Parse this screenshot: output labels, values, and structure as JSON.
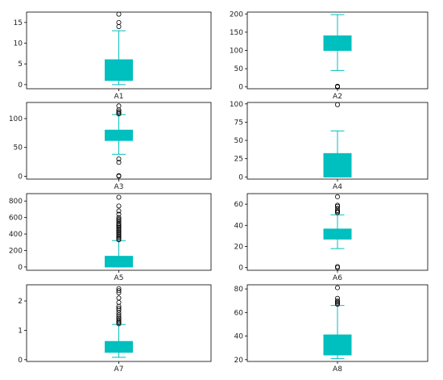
{
  "chart_data": [
    {
      "type": "box",
      "category": "A1",
      "ylim": [
        -1,
        17.5
      ],
      "yticks": [
        0,
        5,
        10,
        15
      ],
      "whisker_low": 0,
      "q1": 1,
      "median": 3,
      "q3": 6,
      "whisker_high": 13,
      "outliers": [
        14,
        15,
        17
      ],
      "color": "#00BFBF"
    },
    {
      "type": "box",
      "category": "A2",
      "ylim": [
        -5,
        205
      ],
      "yticks": [
        0,
        50,
        100,
        150,
        200
      ],
      "whisker_low": 45,
      "q1": 100,
      "median": 120,
      "q3": 140,
      "whisker_high": 198,
      "outliers": [
        0,
        1,
        2
      ],
      "color": "#00BFBF"
    },
    {
      "type": "box",
      "category": "A3",
      "ylim": [
        -5,
        128
      ],
      "yticks": [
        0,
        50,
        100
      ],
      "whisker_low": 38,
      "q1": 62,
      "median": 72,
      "q3": 80,
      "whisker_high": 107,
      "outliers": [
        0,
        1,
        24,
        30,
        108,
        110,
        112,
        115,
        122
      ],
      "color": "#00BFBF"
    },
    {
      "type": "box",
      "category": "A4",
      "ylim": [
        -3,
        102
      ],
      "yticks": [
        0,
        25,
        50,
        75,
        100
      ],
      "whisker_low": 0,
      "q1": 0,
      "median": 0,
      "q3": 32,
      "whisker_high": 63,
      "outliers": [
        99
      ],
      "color": "#00BFBF"
    },
    {
      "type": "box",
      "category": "A5",
      "ylim": [
        -40,
        890
      ],
      "yticks": [
        0,
        200,
        400,
        600,
        800
      ],
      "whisker_low": 0,
      "q1": 0,
      "median": 30,
      "q3": 130,
      "whisker_high": 320,
      "outliers": [
        330,
        345,
        360,
        375,
        390,
        405,
        420,
        435,
        450,
        465,
        480,
        495,
        510,
        525,
        545,
        565,
        580,
        600,
        640,
        680,
        740,
        846
      ],
      "color": "#00BFBF"
    },
    {
      "type": "box",
      "category": "A6",
      "ylim": [
        -2.5,
        70
      ],
      "yticks": [
        0,
        20,
        40,
        60
      ],
      "whisker_low": 18,
      "q1": 27,
      "median": 32,
      "q3": 36.5,
      "whisker_high": 50,
      "outliers": [
        0,
        1,
        52,
        53,
        54,
        56,
        58,
        59,
        67
      ],
      "color": "#00BFBF"
    },
    {
      "type": "box",
      "category": "A7",
      "ylim": [
        -0.06,
        2.55
      ],
      "yticks": [
        0,
        1,
        2
      ],
      "whisker_low": 0.08,
      "q1": 0.25,
      "median": 0.37,
      "q3": 0.62,
      "whisker_high": 1.2,
      "outliers": [
        1.22,
        1.26,
        1.3,
        1.35,
        1.4,
        1.45,
        1.52,
        1.6,
        1.68,
        1.75,
        1.82,
        1.95,
        2.1,
        2.28,
        2.35,
        2.42
      ],
      "color": "#00BFBF"
    },
    {
      "type": "box",
      "category": "A8",
      "ylim": [
        18.5,
        83.5
      ],
      "yticks": [
        20,
        40,
        60,
        80
      ],
      "whisker_low": 21,
      "q1": 24,
      "median": 29,
      "q3": 41,
      "whisker_high": 66,
      "outliers": [
        67,
        68,
        69,
        70,
        72,
        81
      ],
      "color": "#00BFBF"
    }
  ]
}
